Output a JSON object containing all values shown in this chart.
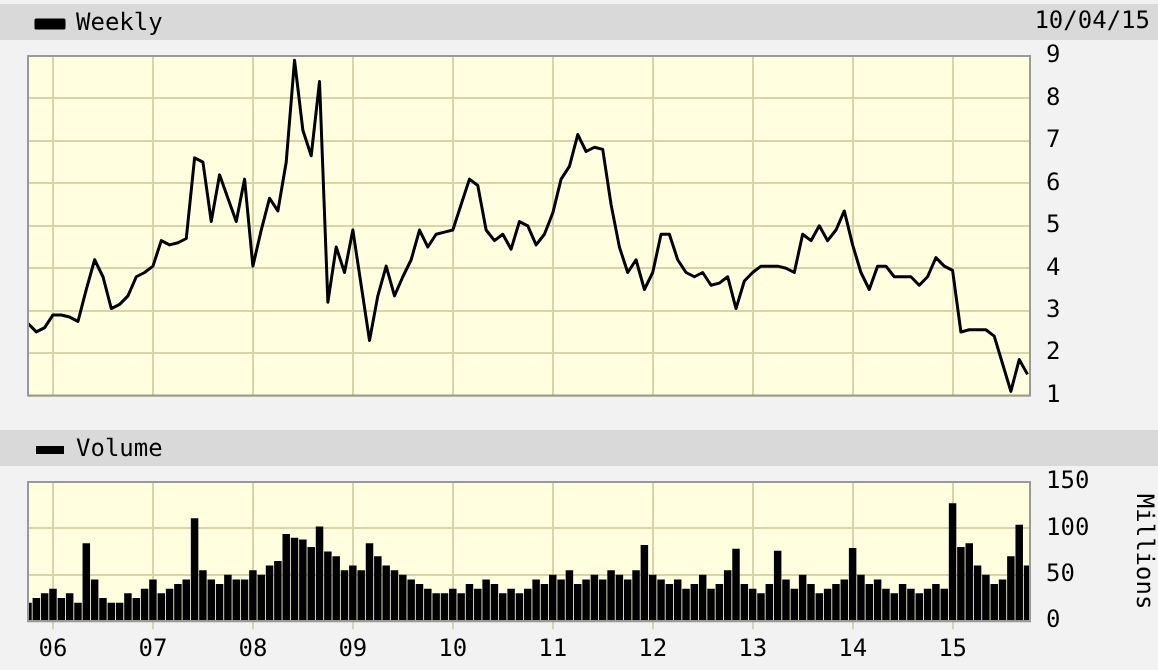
{
  "chart_data": [
    {
      "type": "line",
      "legend": "top left",
      "grid": true,
      "marker": "none",
      "line_style": "solid",
      "tick_labels": "y",
      "annotations": [
        "10/04/15"
      ],
      "x": [
        "2005-10",
        "2005-11",
        "2005-12",
        "2006-01",
        "2006-02",
        "2006-03",
        "2006-04",
        "2006-05",
        "2006-06",
        "2006-07",
        "2006-08",
        "2006-09",
        "2006-10",
        "2006-11",
        "2006-12",
        "2007-01",
        "2007-02",
        "2007-03",
        "2007-04",
        "2007-05",
        "2007-06",
        "2007-07",
        "2007-08",
        "2007-09",
        "2007-10",
        "2007-11",
        "2007-12",
        "2008-01",
        "2008-02",
        "2008-03",
        "2008-04",
        "2008-05",
        "2008-06",
        "2008-07",
        "2008-08",
        "2008-09",
        "2008-10",
        "2008-11",
        "2008-12",
        "2009-01",
        "2009-02",
        "2009-03",
        "2009-04",
        "2009-05",
        "2009-06",
        "2009-07",
        "2009-08",
        "2009-09",
        "2009-10",
        "2009-11",
        "2009-12",
        "2010-01",
        "2010-02",
        "2010-03",
        "2010-04",
        "2010-05",
        "2010-06",
        "2010-07",
        "2010-08",
        "2010-09",
        "2010-10",
        "2010-11",
        "2010-12",
        "2011-01",
        "2011-02",
        "2011-03",
        "2011-04",
        "2011-05",
        "2011-06",
        "2011-07",
        "2011-08",
        "2011-09",
        "2011-10",
        "2011-11",
        "2011-12",
        "2012-01",
        "2012-02",
        "2012-03",
        "2012-04",
        "2012-05",
        "2012-06",
        "2012-07",
        "2012-08",
        "2012-09",
        "2012-10",
        "2012-11",
        "2012-12",
        "2013-01",
        "2013-02",
        "2013-03",
        "2013-04",
        "2013-05",
        "2013-06",
        "2013-07",
        "2013-08",
        "2013-09",
        "2013-10",
        "2013-11",
        "2013-12",
        "2014-01",
        "2014-02",
        "2014-03",
        "2014-04",
        "2014-05",
        "2014-06",
        "2014-07",
        "2014-08",
        "2014-09",
        "2014-10",
        "2014-11",
        "2014-12",
        "2015-01",
        "2015-02",
        "2015-03",
        "2015-04",
        "2015-05",
        "2015-06",
        "2015-07",
        "2015-08",
        "2015-09",
        "2015-10"
      ],
      "series": [
        {
          "name": "Weekly",
          "color": "#000000",
          "values": [
            2.7,
            2.5,
            2.6,
            2.9,
            2.9,
            2.85,
            2.75,
            3.5,
            4.2,
            3.8,
            3.05,
            3.15,
            3.35,
            3.8,
            3.9,
            4.05,
            4.65,
            4.55,
            4.6,
            4.7,
            6.6,
            6.5,
            5.1,
            6.2,
            5.65,
            5.1,
            6.1,
            4.05,
            4.9,
            5.65,
            5.35,
            6.5,
            8.9,
            7.25,
            6.65,
            8.4,
            3.2,
            4.5,
            3.9,
            4.9,
            3.6,
            2.3,
            3.35,
            4.05,
            3.35,
            3.8,
            4.2,
            4.9,
            4.5,
            4.8,
            4.85,
            4.9,
            5.5,
            6.1,
            5.95,
            4.9,
            4.65,
            4.8,
            4.45,
            5.1,
            5.0,
            4.55,
            4.8,
            5.3,
            6.1,
            6.4,
            7.15,
            6.75,
            6.85,
            6.8,
            5.5,
            4.5,
            3.9,
            4.2,
            3.5,
            3.9,
            4.8,
            4.8,
            4.2,
            3.9,
            3.8,
            3.9,
            3.6,
            3.65,
            3.8,
            3.05,
            3.7,
            3.9,
            4.05,
            4.05,
            4.05,
            4.0,
            3.9,
            4.8,
            4.65,
            5.0,
            4.65,
            4.9,
            5.35,
            4.55,
            3.9,
            3.5,
            4.05,
            4.05,
            3.8,
            3.8,
            3.8,
            3.6,
            3.8,
            4.25,
            4.05,
            3.95,
            2.5,
            2.55,
            2.55,
            2.55,
            2.4,
            1.75,
            1.1,
            1.85,
            1.5
          ]
        }
      ],
      "xlim": [
        "2005-10-01",
        "2015-10-10"
      ],
      "xticks": [
        {
          "value": "2006-01-01",
          "label": null
        },
        {
          "value": "2007-01-01",
          "label": null
        },
        {
          "value": "2008-01-01",
          "label": null
        },
        {
          "value": "2009-01-01",
          "label": null
        },
        {
          "value": "2010-01-01",
          "label": null
        },
        {
          "value": "2011-01-01",
          "label": null
        },
        {
          "value": "2012-01-01",
          "label": null
        },
        {
          "value": "2013-01-01",
          "label": null
        },
        {
          "value": "2014-01-01",
          "label": null
        },
        {
          "value": "2015-01-01",
          "label": null
        }
      ],
      "ylim": [
        1,
        9
      ],
      "yticks": [
        1,
        2,
        3,
        4,
        5,
        6,
        7,
        8,
        9
      ]
    },
    {
      "type": "bar",
      "legend": "top left",
      "grid": true,
      "ylabel": "Millions",
      "x": [
        "2005-10",
        "2005-11",
        "2005-12",
        "2006-01",
        "2006-02",
        "2006-03",
        "2006-04",
        "2006-05",
        "2006-06",
        "2006-07",
        "2006-08",
        "2006-09",
        "2006-10",
        "2006-11",
        "2006-12",
        "2007-01",
        "2007-02",
        "2007-03",
        "2007-04",
        "2007-05",
        "2007-06",
        "2007-07",
        "2007-08",
        "2007-09",
        "2007-10",
        "2007-11",
        "2007-12",
        "2008-01",
        "2008-02",
        "2008-03",
        "2008-04",
        "2008-05",
        "2008-06",
        "2008-07",
        "2008-08",
        "2008-09",
        "2008-10",
        "2008-11",
        "2008-12",
        "2009-01",
        "2009-02",
        "2009-03",
        "2009-04",
        "2009-05",
        "2009-06",
        "2009-07",
        "2009-08",
        "2009-09",
        "2009-10",
        "2009-11",
        "2009-12",
        "2010-01",
        "2010-02",
        "2010-03",
        "2010-04",
        "2010-05",
        "2010-06",
        "2010-07",
        "2010-08",
        "2010-09",
        "2010-10",
        "2010-11",
        "2010-12",
        "2011-01",
        "2011-02",
        "2011-03",
        "2011-04",
        "2011-05",
        "2011-06",
        "2011-07",
        "2011-08",
        "2011-09",
        "2011-10",
        "2011-11",
        "2011-12",
        "2012-01",
        "2012-02",
        "2012-03",
        "2012-04",
        "2012-05",
        "2012-06",
        "2012-07",
        "2012-08",
        "2012-09",
        "2012-10",
        "2012-11",
        "2012-12",
        "2013-01",
        "2013-02",
        "2013-03",
        "2013-04",
        "2013-05",
        "2013-06",
        "2013-07",
        "2013-08",
        "2013-09",
        "2013-10",
        "2013-11",
        "2013-12",
        "2014-01",
        "2014-02",
        "2014-03",
        "2014-04",
        "2014-05",
        "2014-06",
        "2014-07",
        "2014-08",
        "2014-09",
        "2014-10",
        "2014-11",
        "2014-12",
        "2015-01",
        "2015-02",
        "2015-03",
        "2015-04",
        "2015-05",
        "2015-06",
        "2015-07",
        "2015-08",
        "2015-09",
        "2015-10"
      ],
      "series": [
        {
          "name": "Volume",
          "color": "#000000",
          "values": [
            20,
            25,
            30,
            35,
            25,
            30,
            20,
            84,
            45,
            25,
            20,
            20,
            30,
            25,
            35,
            45,
            30,
            35,
            40,
            45,
            111,
            55,
            45,
            40,
            50,
            45,
            45,
            55,
            50,
            60,
            65,
            94,
            90,
            88,
            80,
            102,
            75,
            70,
            55,
            60,
            55,
            84,
            70,
            60,
            55,
            50,
            45,
            40,
            35,
            30,
            30,
            35,
            30,
            40,
            35,
            45,
            40,
            30,
            35,
            30,
            35,
            45,
            40,
            50,
            45,
            55,
            40,
            45,
            50,
            45,
            55,
            50,
            45,
            55,
            82,
            50,
            45,
            40,
            45,
            35,
            40,
            50,
            35,
            40,
            55,
            78,
            40,
            35,
            30,
            40,
            76,
            45,
            35,
            50,
            40,
            30,
            35,
            40,
            45,
            79,
            50,
            40,
            45,
            35,
            30,
            40,
            35,
            30,
            35,
            40,
            35,
            127,
            80,
            84,
            60,
            50,
            40,
            45,
            70,
            104,
            60
          ]
        }
      ],
      "xlim": [
        "2005-10-01",
        "2015-10-10"
      ],
      "xticks": [
        {
          "value": "2006-01-01",
          "label": "06"
        },
        {
          "value": "2007-01-01",
          "label": "07"
        },
        {
          "value": "2008-01-01",
          "label": "08"
        },
        {
          "value": "2009-01-01",
          "label": "09"
        },
        {
          "value": "2010-01-01",
          "label": "10"
        },
        {
          "value": "2011-01-01",
          "label": "11"
        },
        {
          "value": "2012-01-01",
          "label": "12"
        },
        {
          "value": "2013-01-01",
          "label": "13"
        },
        {
          "value": "2014-01-01",
          "label": "14"
        },
        {
          "value": "2015-01-01",
          "label": "15"
        }
      ],
      "ylim": [
        0,
        150
      ],
      "yticks": [
        0,
        50,
        100,
        150
      ]
    }
  ]
}
